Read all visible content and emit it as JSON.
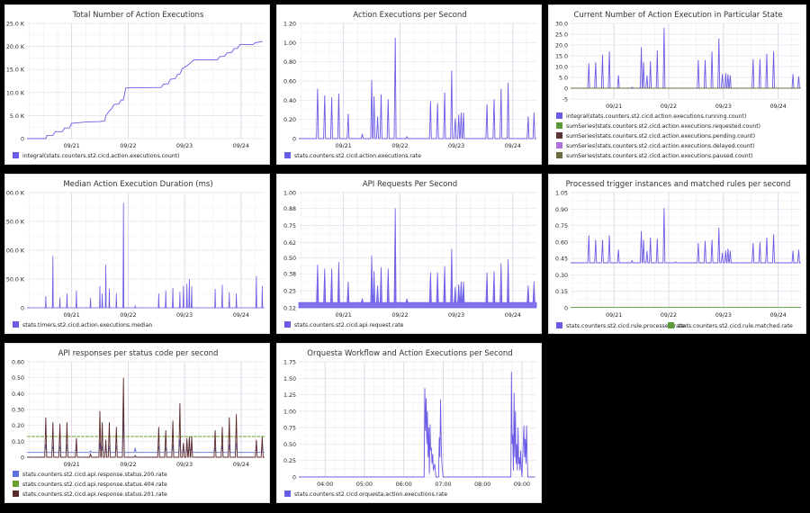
{
  "spike_times": [
    "09/20 13:00",
    "09/20 16:00",
    "09/20 19:00",
    "09/20 22:00",
    "09/21 02:00",
    "09/21 08:00",
    "09/21 12:00",
    "09/21 13:00",
    "09/21 14:30",
    "09/21 16:00",
    "09/21 19:00",
    "09/21 22:00",
    "09/22 03:00",
    "09/22 13:00",
    "09/22 16:00",
    "09/22 19:00",
    "09/22 22:00",
    "09/22 23:30",
    "09/23 01:00",
    "09/23 02:00",
    "09/23 03:00",
    "09/23 13:00",
    "09/23 16:00",
    "09/23 19:00",
    "09/23 22:00",
    "09/24 06:30",
    "09/24 09:00"
  ],
  "chart_data": [
    {
      "type": "line",
      "title": "Total Number of Action Executions",
      "xlim": [
        "09/20 05:00",
        "09/24 10:00"
      ],
      "xticks": [
        "09/21",
        "09/22",
        "09/23",
        "09/24"
      ],
      "ylim": [
        0,
        25000
      ],
      "yticks": [
        0,
        5000,
        10000,
        15000,
        20000,
        25000
      ],
      "ytick_labels": [
        "0",
        "5.0 K",
        "10.0 K",
        "15.0 K",
        "20.0 K",
        "25.0 K"
      ],
      "grid": true,
      "legend": "bottom",
      "series": [
        {
          "name": "integral(stats.counters.st2.cicd.action.executions.count)",
          "color": "#6b5ce7",
          "points": [
            [
              "09/20 05:00",
              0
            ],
            [
              "09/20 13:00",
              0
            ],
            [
              "09/20 13:30",
              700
            ],
            [
              "09/20 16:00",
              700
            ],
            [
              "09/20 17:00",
              1500
            ],
            [
              "09/20 20:00",
              1500
            ],
            [
              "09/20 21:00",
              2300
            ],
            [
              "09/20 23:00",
              2300
            ],
            [
              "09/21 00:00",
              3300
            ],
            [
              "09/21 06:00",
              3600
            ],
            [
              "09/21 12:00",
              3700
            ],
            [
              "09/21 14:00",
              3800
            ],
            [
              "09/21 14:30",
              5000
            ],
            [
              "09/21 16:00",
              6000
            ],
            [
              "09/21 17:00",
              6500
            ],
            [
              "09/21 18:00",
              7400
            ],
            [
              "09/21 20:00",
              7500
            ],
            [
              "09/21 21:00",
              8400
            ],
            [
              "09/21 22:00",
              8400
            ],
            [
              "09/21 23:00",
              11000
            ],
            [
              "09/22 14:00",
              11100
            ],
            [
              "09/22 15:00",
              11800
            ],
            [
              "09/22 17:00",
              11900
            ],
            [
              "09/22 18:00",
              12900
            ],
            [
              "09/22 20:00",
              13000
            ],
            [
              "09/22 21:00",
              13900
            ],
            [
              "09/22 22:00",
              14000
            ],
            [
              "09/22 23:00",
              15200
            ],
            [
              "09/23 01:00",
              15800
            ],
            [
              "09/23 04:00",
              17100
            ],
            [
              "09/23 14:00",
              17100
            ],
            [
              "09/23 15:00",
              17800
            ],
            [
              "09/23 17:00",
              17900
            ],
            [
              "09/23 18:00",
              18600
            ],
            [
              "09/23 20:00",
              18700
            ],
            [
              "09/23 21:00",
              19500
            ],
            [
              "09/23 22:30",
              19600
            ],
            [
              "09/23 23:30",
              20400
            ],
            [
              "09/24 05:00",
              20400
            ],
            [
              "09/24 06:00",
              20800
            ],
            [
              "09/24 09:00",
              21100
            ]
          ]
        }
      ]
    },
    {
      "type": "line",
      "title": "Action Executions per Second",
      "xlim": [
        "09/20 05:00",
        "09/24 10:00"
      ],
      "xticks": [
        "09/21",
        "09/22",
        "09/23",
        "09/24"
      ],
      "ylim": [
        0,
        1.2
      ],
      "yticks": [
        0,
        0.2,
        0.4,
        0.6,
        0.8,
        1.0,
        1.2
      ],
      "ytick_labels": [
        "0",
        "0.20",
        "0.40",
        "0.60",
        "0.80",
        "1.00",
        "1.20"
      ],
      "grid": true,
      "legend": "bottom",
      "series": [
        {
          "name": "stats.counters.st2.cicd.action.executions.rate",
          "color": "#6b5ce7",
          "baseline": 0,
          "spike_values": [
            0.52,
            0.45,
            0.43,
            0.47,
            0.26,
            0.05,
            0.61,
            0.44,
            0.23,
            0.46,
            0.41,
            1.05,
            0.02,
            0.39,
            0.37,
            0.48,
            0.71,
            0.21,
            0.25,
            0.27,
            0.27,
            0.36,
            0.41,
            0.52,
            0.58,
            0.23,
            0.27
          ]
        }
      ]
    },
    {
      "type": "line",
      "title": "Current Number of Action Execution in Particular State",
      "xlim": [
        "09/20 05:00",
        "09/24 10:00"
      ],
      "xticks": [
        "09/21",
        "09/22",
        "09/23",
        "09/24"
      ],
      "ylim": [
        -5,
        30
      ],
      "yticks": [
        -5,
        0,
        5,
        10,
        15,
        20,
        25,
        30
      ],
      "ytick_labels": [
        "-5",
        "0",
        "5.0",
        "10.0",
        "15.0",
        "20.0",
        "25.0",
        "30.0"
      ],
      "grid": true,
      "legend": "bottom",
      "series": [
        {
          "name": "integral(stats.counters.st2.cicd.action.executions.running.count)",
          "color": "#6b5ce7",
          "baseline": 0,
          "spike_values": [
            11.5,
            12,
            15.5,
            17,
            6,
            0.5,
            19,
            12,
            6,
            12.5,
            17.5,
            28,
            0,
            13,
            13,
            17,
            23,
            6.5,
            7,
            6.5,
            6,
            13.5,
            13.5,
            16,
            17,
            6.5,
            5.5
          ]
        },
        {
          "name": "sumSeries(stats.counters.st2.cicd.action.executions.requested.count)",
          "color": "#5a9a3a",
          "constant": 0
        },
        {
          "name": "sumSeries(stats.counters.st2.cicd.action.executions.pending.count)",
          "color": "#5a3434",
          "constant": 0
        },
        {
          "name": "sumSeries(stats.counters.st2.cicd.action.executions.delayed.count)",
          "color": "#b070e0",
          "constant": 0
        },
        {
          "name": "sumSeries(stats.counters.st2.cicd.action.executions.paused.count)",
          "color": "#6b6b40",
          "constant": 0
        }
      ]
    },
    {
      "type": "area",
      "title": "Median Action Execution Duration (ms)",
      "xlim": [
        "09/20 05:00",
        "09/24 10:00"
      ],
      "xticks": [
        "09/21",
        "09/22",
        "09/23",
        "09/24"
      ],
      "ylim": [
        0,
        200000
      ],
      "yticks": [
        0,
        50000,
        100000,
        150000,
        200000
      ],
      "ytick_labels": [
        "0",
        "50.0 K",
        "100.0 K",
        "150.0 K",
        "200.0 K"
      ],
      "grid": true,
      "legend": "bottom",
      "series": [
        {
          "name": "stats.timers.st2.cicd.action.executions.median",
          "color": "#6b5ce7",
          "baseline": 0,
          "spike_values": [
            20000,
            90000,
            18000,
            25000,
            30000,
            17000,
            38000,
            25000,
            75000,
            33000,
            25000,
            182000,
            3000,
            25000,
            30000,
            35000,
            28000,
            38000,
            42000,
            50000,
            38000,
            33000,
            40000,
            27000,
            25000,
            55000,
            38000
          ]
        }
      ]
    },
    {
      "type": "area",
      "title": "API Requests Per Second",
      "xlim": [
        "09/20 05:00",
        "09/24 10:00"
      ],
      "xticks": [
        "09/21",
        "09/22",
        "09/23",
        "09/24"
      ],
      "ylim": [
        0.12,
        1.0
      ],
      "yticks": [
        0.12,
        0.25,
        0.38,
        0.5,
        0.62,
        0.75,
        0.88,
        1.0
      ],
      "ytick_labels": [
        "0.12",
        "0.25",
        "0.38",
        "0.50",
        "0.62",
        "0.75",
        "0.88",
        "1.00"
      ],
      "grid": true,
      "legend": "bottom",
      "series": [
        {
          "name": "stats.counters.st2.cicd.api.request.rate",
          "color": "#6b5ce7",
          "baseline": 0.16,
          "spike_values": [
            0.45,
            0.42,
            0.42,
            0.47,
            0.32,
            0.19,
            0.52,
            0.4,
            0.29,
            0.43,
            0.42,
            0.88,
            0.19,
            0.39,
            0.39,
            0.44,
            0.57,
            0.28,
            0.3,
            0.32,
            0.32,
            0.39,
            0.4,
            0.46,
            0.49,
            0.29,
            0.32
          ]
        }
      ]
    },
    {
      "type": "line",
      "title": "Processed trigger instances and matched rules per second",
      "xlim": [
        "09/20 05:00",
        "09/24 10:00"
      ],
      "xticks": [
        "09/21",
        "09/22",
        "09/23",
        "09/24"
      ],
      "ylim": [
        0,
        1.05
      ],
      "yticks": [
        0,
        0.15,
        0.3,
        0.45,
        0.6,
        0.75,
        0.9,
        1.05
      ],
      "ytick_labels": [
        "0",
        "0.15",
        "0.30",
        "0.45",
        "0.60",
        "0.75",
        "0.90",
        "1.05"
      ],
      "grid": true,
      "legend": "bottom-inline",
      "series": [
        {
          "name": "stats.counters.st2.cicd.rule.processed.rate",
          "color": "#6b5ce7",
          "baseline": 0.41,
          "spike_values": [
            0.66,
            0.62,
            0.62,
            0.66,
            0.53,
            0.43,
            0.7,
            0.62,
            0.52,
            0.64,
            0.63,
            0.91,
            0.42,
            0.59,
            0.61,
            0.62,
            0.73,
            0.5,
            0.52,
            0.54,
            0.52,
            0.59,
            0.6,
            0.64,
            0.67,
            0.52,
            0.53
          ]
        },
        {
          "name": "stats.counters.st2.cicd.rule.matched.rate",
          "color": "#5a9a3a",
          "constant": 0.003
        }
      ]
    },
    {
      "type": "line",
      "title": "API responses per status code per second",
      "xlim": [
        "09/20 05:00",
        "09/24 10:00"
      ],
      "xticks": [
        "09/21",
        "09/22",
        "09/23",
        "09/24"
      ],
      "ylim": [
        0,
        0.6
      ],
      "yticks": [
        0,
        0.1,
        0.2,
        0.3,
        0.4,
        0.5,
        0.6
      ],
      "ytick_labels": [
        "0",
        "0.10",
        "0.20",
        "0.30",
        "0.40",
        "0.50",
        "0.60"
      ],
      "grid": true,
      "legend": "bottom",
      "series": [
        {
          "name": "stats.counters.st2.cicd.api.response.status.200.rate",
          "color": "#6070e0",
          "baseline": 0.03,
          "spike_values": [
            0.08,
            0.07,
            0.07,
            0.08,
            0.05,
            0.04,
            0.09,
            0.07,
            0.05,
            0.07,
            0.07,
            0.27,
            0.06,
            0.07,
            0.06,
            0.08,
            0.11,
            0.05,
            0.05,
            0.06,
            0.06,
            0.06,
            0.07,
            0.08,
            0.09,
            0.05,
            0.06
          ]
        },
        {
          "name": "stats.counters.st2.cicd.api.response.status.404.rate",
          "color": "#6aa030",
          "constant": 0.13
        },
        {
          "name": "stats.counters.st2.cicd.api.response.status.201.rate",
          "color": "#5a2a2a",
          "baseline": 0,
          "spike_values": [
            0.25,
            0.22,
            0.21,
            0.22,
            0.12,
            0.02,
            0.29,
            0.22,
            0.11,
            0.22,
            0.19,
            0.5,
            0.01,
            0.19,
            0.17,
            0.23,
            0.34,
            0.09,
            0.12,
            0.13,
            0.13,
            0.17,
            0.19,
            0.25,
            0.27,
            0.11,
            0.13
          ]
        }
      ]
    },
    {
      "type": "line",
      "title": "Orquesta Workflow and Action Executions per Second",
      "xlim": [
        "03:20",
        "09:22"
      ],
      "xticks": [
        "04:00",
        "05:00",
        "06:00",
        "07:00",
        "08:00",
        "09:00"
      ],
      "ylim": [
        0,
        1.75
      ],
      "yticks": [
        0,
        0.25,
        0.5,
        0.75,
        1.0,
        1.25,
        1.5,
        1.75
      ],
      "ytick_labels": [
        "0",
        "0.25",
        "0.50",
        "0.75",
        "1.00",
        "1.25",
        "1.50",
        "1.75"
      ],
      "grid": true,
      "legend": "bottom",
      "series": [
        {
          "name": "stats.counters.st2.cicd.orquesta.action.executions.rate",
          "color": "#6b5ce7",
          "points": [
            [
              "03:20",
              0
            ],
            [
              "06:31",
              0
            ],
            [
              "06:32",
              1.35
            ],
            [
              "06:33",
              0.7
            ],
            [
              "06:34",
              1.2
            ],
            [
              "06:35",
              0.5
            ],
            [
              "06:36",
              1.0
            ],
            [
              "06:37",
              0.3
            ],
            [
              "06:38",
              0.75
            ],
            [
              "06:39",
              0.05
            ],
            [
              "06:40",
              0.8
            ],
            [
              "06:41",
              0.4
            ],
            [
              "06:42",
              0.45
            ],
            [
              "06:43",
              0.2
            ],
            [
              "06:44",
              0.35
            ],
            [
              "06:45",
              0.1
            ],
            [
              "06:47",
              0.2
            ],
            [
              "06:49",
              0
            ],
            [
              "06:53",
              0
            ],
            [
              "06:54",
              0.6
            ],
            [
              "06:55",
              0.3
            ],
            [
              "06:56",
              1.18
            ],
            [
              "06:57",
              0.5
            ],
            [
              "06:58",
              0.2
            ],
            [
              "07:00",
              0
            ],
            [
              "08:43",
              0
            ],
            [
              "08:44",
              1.6
            ],
            [
              "08:45",
              0.5
            ],
            [
              "08:46",
              0.65
            ],
            [
              "08:47",
              0.1
            ],
            [
              "08:48",
              1.28
            ],
            [
              "08:49",
              0.3
            ],
            [
              "08:50",
              1.0
            ],
            [
              "08:51",
              0.2
            ],
            [
              "08:52",
              0.5
            ],
            [
              "08:53",
              0.1
            ],
            [
              "08:54",
              0.75
            ],
            [
              "08:55",
              0.2
            ],
            [
              "08:56",
              0.3
            ],
            [
              "08:57",
              0.1
            ],
            [
              "08:58",
              0.4
            ],
            [
              "08:59",
              0.15
            ],
            [
              "09:00",
              0
            ],
            [
              "09:03",
              0.78
            ],
            [
              "09:04",
              0.3
            ],
            [
              "09:05",
              0.58
            ],
            [
              "09:06",
              0.2
            ],
            [
              "09:07",
              0.78
            ],
            [
              "09:08",
              0.3
            ],
            [
              "09:09",
              0
            ],
            [
              "09:20",
              0
            ]
          ]
        }
      ]
    }
  ]
}
